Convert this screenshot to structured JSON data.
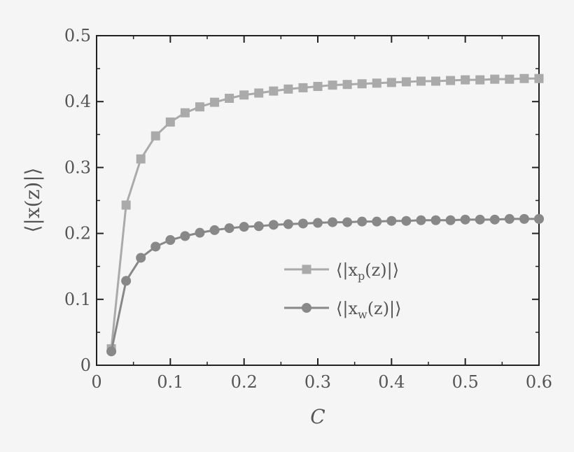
{
  "chart_data": {
    "type": "line",
    "xlabel": "C",
    "ylabel": "⟨|x(z)|⟩",
    "xlim": [
      0,
      0.6
    ],
    "ylim": [
      0,
      0.5
    ],
    "x_ticks": [
      "0",
      "0.1",
      "0.2",
      "0.3",
      "0.4",
      "0.5",
      "0.6"
    ],
    "y_ticks": [
      "0",
      "0.1",
      "0.2",
      "0.3",
      "0.4",
      "0.5"
    ],
    "grid": false,
    "legend_position": "center-right",
    "x": [
      0.02,
      0.04,
      0.06,
      0.08,
      0.1,
      0.12,
      0.14,
      0.16,
      0.18,
      0.2,
      0.22,
      0.24,
      0.26,
      0.28,
      0.3,
      0.32,
      0.34,
      0.36,
      0.38,
      0.4,
      0.42,
      0.44,
      0.46,
      0.48,
      0.5,
      0.52,
      0.54,
      0.56,
      0.58,
      0.6
    ],
    "series": [
      {
        "name": "⟨|xp(z)|⟩",
        "label_main": "⟨|x",
        "label_sub": "p",
        "label_tail": "(z)|⟩",
        "marker": "square",
        "color": "#aaaaaa",
        "values": [
          0.025,
          0.243,
          0.313,
          0.348,
          0.369,
          0.383,
          0.392,
          0.399,
          0.405,
          0.41,
          0.413,
          0.416,
          0.419,
          0.421,
          0.423,
          0.425,
          0.426,
          0.427,
          0.428,
          0.429,
          0.43,
          0.431,
          0.431,
          0.432,
          0.433,
          0.433,
          0.434,
          0.434,
          0.435,
          0.435
        ]
      },
      {
        "name": "⟨|xw(z)|⟩",
        "label_main": "⟨|x",
        "label_sub": "w",
        "label_tail": "(z)|⟩",
        "marker": "circle",
        "color": "#888888",
        "values": [
          0.021,
          0.128,
          0.163,
          0.18,
          0.19,
          0.196,
          0.201,
          0.205,
          0.208,
          0.21,
          0.211,
          0.213,
          0.214,
          0.215,
          0.216,
          0.217,
          0.217,
          0.218,
          0.218,
          0.219,
          0.219,
          0.22,
          0.22,
          0.22,
          0.221,
          0.221,
          0.221,
          0.222,
          0.222,
          0.222
        ]
      }
    ]
  }
}
